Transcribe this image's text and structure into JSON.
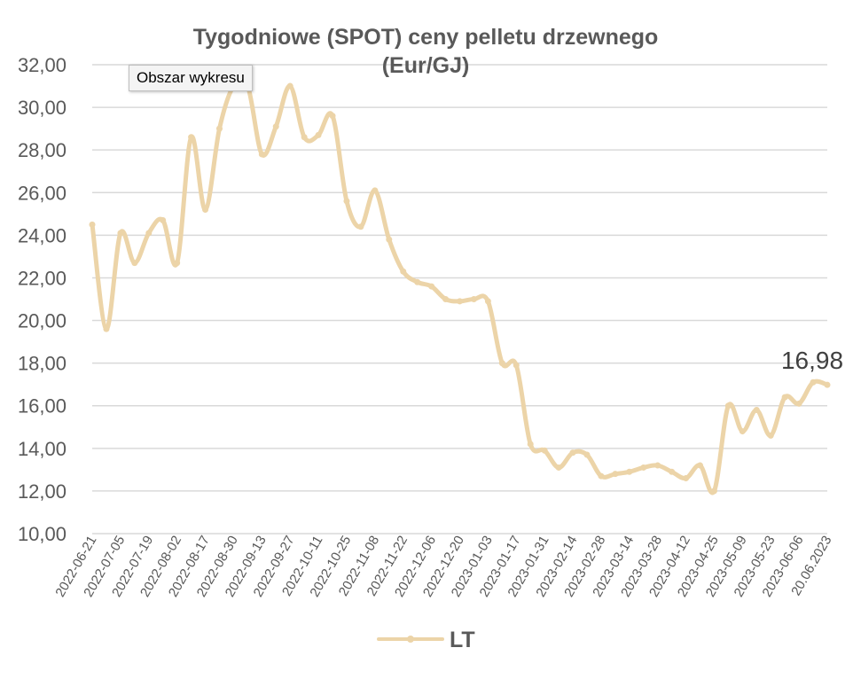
{
  "colors": {
    "series": "#ecd4a8",
    "grid": "#d9d9d9",
    "text": "#595959"
  },
  "tooltip": "Obszar wykresu",
  "chart_data": {
    "type": "line",
    "title_line1": "Tygodniowe (SPOT) ceny pelletu drzewnego",
    "title_line2": "(Eur/GJ)",
    "ylim": [
      10,
      32
    ],
    "yticks": [
      "10,00",
      "12,00",
      "14,00",
      "16,00",
      "18,00",
      "20,00",
      "22,00",
      "24,00",
      "26,00",
      "28,00",
      "30,00",
      "32,00"
    ],
    "ytick_values": [
      10,
      12,
      14,
      16,
      18,
      20,
      22,
      24,
      26,
      28,
      30,
      32
    ],
    "xtick_labels": [
      "2022-06-21",
      "2022-07-05",
      "2022-07-19",
      "2022-08-02",
      "2022-08-17",
      "2022-08-30",
      "2022-09-13",
      "2022-09-27",
      "2022-10-11",
      "2022-10-25",
      "2022-11-08",
      "2022-11-22",
      "2022-12-06",
      "2022-12-20",
      "2023-01-03",
      "2023-01-17",
      "2023-01-31",
      "2023-02-14",
      "2023-02-28",
      "2023-03-14",
      "2023-03-28",
      "2023-04-12",
      "2023-04-25",
      "2023-05-09",
      "2023-05-23",
      "2023-06-06",
      "20.06.2023"
    ],
    "grid": true,
    "legend_position": "bottom",
    "last_value_label": "16,98",
    "series": [
      {
        "name": "LT",
        "values": [
          24.5,
          19.6,
          24.1,
          22.7,
          24.1,
          24.7,
          22.7,
          28.6,
          25.2,
          29.0,
          31.0,
          31.0,
          27.8,
          29.1,
          31.0,
          28.6,
          28.7,
          29.6,
          25.6,
          24.4,
          26.1,
          23.8,
          22.3,
          21.8,
          21.6,
          21.0,
          20.9,
          21.0,
          20.9,
          18.0,
          17.9,
          14.2,
          13.9,
          13.1,
          13.8,
          13.7,
          12.7,
          12.8,
          12.9,
          13.1,
          13.2,
          12.9,
          12.6,
          13.2,
          12.0,
          16.0,
          14.8,
          15.8,
          14.6,
          16.4,
          16.1,
          17.1,
          16.98
        ]
      }
    ]
  }
}
